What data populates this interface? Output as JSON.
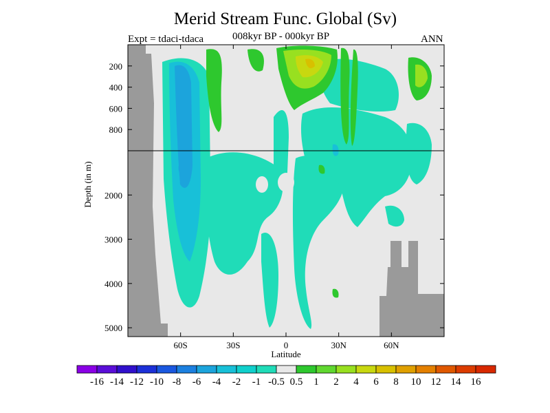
{
  "header": {
    "title": "Merid Stream Func. Global (Sv)",
    "experiment": "Expt = tdaci-tdaca",
    "period": "008kyr BP - 000kyr BP",
    "season": "ANN"
  },
  "chart_data": {
    "type": "heatmap",
    "title": "Merid Stream Func. Global (Sv)",
    "xlabel": "Latitude",
    "ylabel": "Depth (in m)",
    "xlim": [
      -90,
      90
    ],
    "ylim": [
      5200,
      0
    ],
    "y_scale": "piecewise linear (upper 1000 m expanded)",
    "x_ticks": [
      {
        "value": -60,
        "label": "60S"
      },
      {
        "value": -30,
        "label": "30S"
      },
      {
        "value": 0,
        "label": "0"
      },
      {
        "value": 30,
        "label": "30N"
      },
      {
        "value": 60,
        "label": "60N"
      }
    ],
    "y_ticks": [
      {
        "value": 200,
        "label": "200"
      },
      {
        "value": 400,
        "label": "400"
      },
      {
        "value": 600,
        "label": "600"
      },
      {
        "value": 800,
        "label": "800"
      },
      {
        "value": 2000,
        "label": "2000"
      },
      {
        "value": 3000,
        "label": "3000"
      },
      {
        "value": 4000,
        "label": "4000"
      },
      {
        "value": 5000,
        "label": "5000"
      }
    ],
    "colorbar": {
      "labels": [
        "-16",
        "-14",
        "-12",
        "-10",
        "-8",
        "-6",
        "-4",
        "-2",
        "-1",
        "-0.5",
        "0.5",
        "1",
        "2",
        "4",
        "6",
        "8",
        "10",
        "12",
        "14",
        "16"
      ],
      "colors": [
        "#8a00e6",
        "#5a0ed8",
        "#3010cc",
        "#1c30d8",
        "#1a58e0",
        "#1c80e0",
        "#1ca4dc",
        "#18c0d8",
        "#10d0cc",
        "#20dcb8",
        "#e8e8e8",
        "#2ec82e",
        "#60d830",
        "#98e020",
        "#c8d810",
        "#d8c000",
        "#e0a000",
        "#e48000",
        "#e05800",
        "#dc3c00",
        "#d82800"
      ]
    },
    "land_color": "#9a9a9a",
    "missing_color": "#e8e8e8"
  }
}
